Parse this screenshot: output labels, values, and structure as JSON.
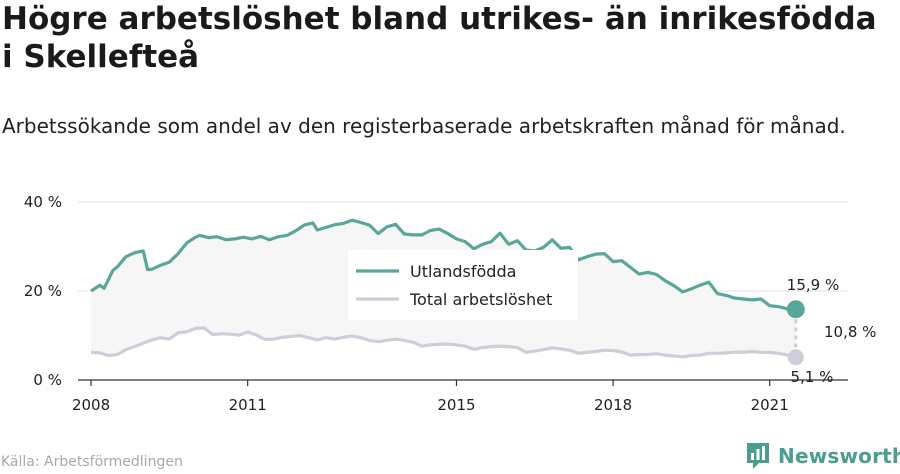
{
  "title": "Högre arbetslöshet bland utrikes- än inrikesfödda i Skellefteå",
  "subtitle": "Arbetssökande som andel av den registerbaserade arbetskraften månad för månad.",
  "source": "Källa: Arbetsförmedlingen",
  "brand": {
    "name": "Newsworthy",
    "icon": "newsworthy-logo-icon",
    "color": "#4a9e90"
  },
  "colors": {
    "utlandsfodda": "#5aa79a",
    "total": "#cfcdd8",
    "fill": "#f6f6f6",
    "grid": "#e2e2e2"
  },
  "chart_data": {
    "type": "line",
    "x_ticks": [
      "2008",
      "2011",
      "2015",
      "2018",
      "2021"
    ],
    "y_ticks": [
      "0 %",
      "20 %",
      "40 %"
    ],
    "ylim": [
      0,
      40
    ],
    "xlim": [
      "2007-10",
      "2022-07"
    ],
    "legend_position": "center",
    "series": [
      {
        "name": "Utlandsfödda",
        "points": [
          [
            "2008-01",
            20.0
          ],
          [
            "2008-03",
            21.3
          ],
          [
            "2008-04",
            20.6
          ],
          [
            "2008-06",
            24.6
          ],
          [
            "2008-07",
            25.4
          ],
          [
            "2008-09",
            27.7
          ],
          [
            "2008-11",
            28.6
          ],
          [
            "2009-01",
            29.0
          ],
          [
            "2009-02",
            24.8
          ],
          [
            "2009-03",
            24.9
          ],
          [
            "2009-05",
            25.8
          ],
          [
            "2009-07",
            26.5
          ],
          [
            "2009-09",
            28.4
          ],
          [
            "2009-11",
            30.8
          ],
          [
            "2010-01",
            32.1
          ],
          [
            "2010-02",
            32.5
          ],
          [
            "2010-04",
            32.0
          ],
          [
            "2010-06",
            32.2
          ],
          [
            "2010-08",
            31.5
          ],
          [
            "2010-10",
            31.7
          ],
          [
            "2010-12",
            32.1
          ],
          [
            "2011-02",
            31.7
          ],
          [
            "2011-04",
            32.3
          ],
          [
            "2011-06",
            31.5
          ],
          [
            "2011-08",
            32.2
          ],
          [
            "2011-10",
            32.5
          ],
          [
            "2011-12",
            33.5
          ],
          [
            "2012-02",
            34.8
          ],
          [
            "2012-04",
            35.3
          ],
          [
            "2012-05",
            33.7
          ],
          [
            "2012-07",
            34.3
          ],
          [
            "2012-09",
            34.9
          ],
          [
            "2012-11",
            35.2
          ],
          [
            "2013-01",
            35.9
          ],
          [
            "2013-03",
            35.4
          ],
          [
            "2013-05",
            34.8
          ],
          [
            "2013-07",
            32.9
          ],
          [
            "2013-09",
            34.4
          ],
          [
            "2013-11",
            35.0
          ],
          [
            "2014-01",
            32.8
          ],
          [
            "2014-03",
            32.6
          ],
          [
            "2014-05",
            32.6
          ],
          [
            "2014-07",
            33.6
          ],
          [
            "2014-09",
            33.9
          ],
          [
            "2014-11",
            32.9
          ],
          [
            "2015-01",
            31.7
          ],
          [
            "2015-03",
            31.1
          ],
          [
            "2015-05",
            29.5
          ],
          [
            "2015-07",
            30.5
          ],
          [
            "2015-09",
            31.1
          ],
          [
            "2015-11",
            33.0
          ],
          [
            "2016-01",
            30.5
          ],
          [
            "2016-03",
            31.3
          ],
          [
            "2016-05",
            29.2
          ],
          [
            "2016-07",
            29.0
          ],
          [
            "2016-09",
            29.8
          ],
          [
            "2016-11",
            31.5
          ],
          [
            "2017-01",
            29.6
          ],
          [
            "2017-03",
            29.8
          ],
          [
            "2017-05",
            27.0
          ],
          [
            "2017-07",
            27.7
          ],
          [
            "2017-09",
            28.3
          ],
          [
            "2017-11",
            28.4
          ],
          [
            "2018-01",
            26.6
          ],
          [
            "2018-03",
            26.8
          ],
          [
            "2018-05",
            25.3
          ],
          [
            "2018-07",
            23.8
          ],
          [
            "2018-09",
            24.2
          ],
          [
            "2018-11",
            23.7
          ],
          [
            "2019-01",
            22.3
          ],
          [
            "2019-03",
            21.2
          ],
          [
            "2019-05",
            19.8
          ],
          [
            "2019-07",
            20.5
          ],
          [
            "2019-09",
            21.3
          ],
          [
            "2019-11",
            22.0
          ],
          [
            "2020-01",
            19.4
          ],
          [
            "2020-03",
            19.0
          ],
          [
            "2020-05",
            18.4
          ],
          [
            "2020-07",
            18.2
          ],
          [
            "2020-09",
            18.0
          ],
          [
            "2020-11",
            18.2
          ],
          [
            "2021-01",
            16.7
          ],
          [
            "2021-03",
            16.5
          ],
          [
            "2021-05",
            16.0
          ],
          [
            "2021-07",
            15.9
          ]
        ]
      },
      {
        "name": "Total arbetslöshet",
        "points": [
          [
            "2008-01",
            6.2
          ],
          [
            "2008-03",
            6.1
          ],
          [
            "2008-05",
            5.5
          ],
          [
            "2008-07",
            5.7
          ],
          [
            "2008-09",
            6.8
          ],
          [
            "2008-11",
            7.5
          ],
          [
            "2009-01",
            8.3
          ],
          [
            "2009-03",
            9.0
          ],
          [
            "2009-05",
            9.5
          ],
          [
            "2009-07",
            9.2
          ],
          [
            "2009-09",
            10.6
          ],
          [
            "2009-11",
            10.8
          ],
          [
            "2010-01",
            11.6
          ],
          [
            "2010-03",
            11.7
          ],
          [
            "2010-05",
            10.2
          ],
          [
            "2010-07",
            10.4
          ],
          [
            "2010-09",
            10.3
          ],
          [
            "2010-11",
            10.1
          ],
          [
            "2011-01",
            10.8
          ],
          [
            "2011-03",
            10.1
          ],
          [
            "2011-05",
            9.1
          ],
          [
            "2011-07",
            9.2
          ],
          [
            "2011-09",
            9.6
          ],
          [
            "2011-11",
            9.8
          ],
          [
            "2012-01",
            10.0
          ],
          [
            "2012-03",
            9.5
          ],
          [
            "2012-05",
            9.0
          ],
          [
            "2012-07",
            9.5
          ],
          [
            "2012-09",
            9.2
          ],
          [
            "2012-11",
            9.6
          ],
          [
            "2013-01",
            9.9
          ],
          [
            "2013-03",
            9.5
          ],
          [
            "2013-05",
            8.9
          ],
          [
            "2013-07",
            8.6
          ],
          [
            "2013-09",
            8.9
          ],
          [
            "2013-11",
            9.2
          ],
          [
            "2014-01",
            8.9
          ],
          [
            "2014-03",
            8.5
          ],
          [
            "2014-05",
            7.6
          ],
          [
            "2014-07",
            7.9
          ],
          [
            "2014-09",
            8.0
          ],
          [
            "2014-11",
            8.1
          ],
          [
            "2015-01",
            7.9
          ],
          [
            "2015-03",
            7.6
          ],
          [
            "2015-05",
            6.9
          ],
          [
            "2015-07",
            7.3
          ],
          [
            "2015-09",
            7.5
          ],
          [
            "2015-11",
            7.6
          ],
          [
            "2016-01",
            7.5
          ],
          [
            "2016-03",
            7.3
          ],
          [
            "2016-05",
            6.2
          ],
          [
            "2016-07",
            6.5
          ],
          [
            "2016-09",
            6.8
          ],
          [
            "2016-11",
            7.2
          ],
          [
            "2017-01",
            7.0
          ],
          [
            "2017-03",
            6.7
          ],
          [
            "2017-05",
            6.0
          ],
          [
            "2017-07",
            6.2
          ],
          [
            "2017-09",
            6.4
          ],
          [
            "2017-11",
            6.7
          ],
          [
            "2018-01",
            6.6
          ],
          [
            "2018-03",
            6.3
          ],
          [
            "2018-05",
            5.6
          ],
          [
            "2018-07",
            5.7
          ],
          [
            "2018-09",
            5.7
          ],
          [
            "2018-11",
            5.9
          ],
          [
            "2019-01",
            5.6
          ],
          [
            "2019-03",
            5.4
          ],
          [
            "2019-05",
            5.2
          ],
          [
            "2019-07",
            5.5
          ],
          [
            "2019-09",
            5.6
          ],
          [
            "2019-11",
            6.0
          ],
          [
            "2020-01",
            6.0
          ],
          [
            "2020-03",
            6.1
          ],
          [
            "2020-05",
            6.3
          ],
          [
            "2020-07",
            6.2
          ],
          [
            "2020-09",
            6.4
          ],
          [
            "2020-11",
            6.2
          ],
          [
            "2021-01",
            6.2
          ],
          [
            "2021-03",
            6.0
          ],
          [
            "2021-05",
            5.6
          ],
          [
            "2021-07",
            5.1
          ]
        ]
      }
    ],
    "annotations": {
      "end_value_top": "15,9 %",
      "difference": "10,8 %",
      "end_value_bottom": "5,1 %"
    }
  }
}
